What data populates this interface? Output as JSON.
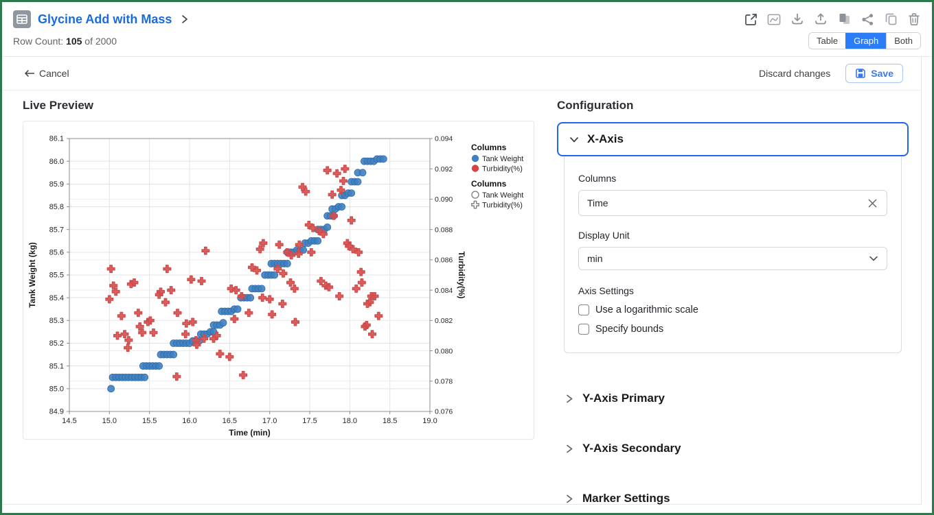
{
  "header": {
    "title": "Glycine Add with Mass",
    "row_count_label": "Row Count:",
    "row_count_value": "105",
    "row_count_total": "of 2000",
    "toolbar_icons": [
      "open-in-new-icon",
      "chart-icon",
      "download-icon",
      "upload-icon",
      "paste-icon",
      "share-icon",
      "copy-icon",
      "delete-icon"
    ],
    "view_toggle": {
      "options": [
        "Table",
        "Graph",
        "Both"
      ],
      "selected": "Graph",
      "selected_color": "#2a7cf7"
    },
    "cancel_label": "Cancel",
    "discard_label": "Discard changes",
    "save_label": "Save"
  },
  "preview": {
    "heading": "Live Preview"
  },
  "config": {
    "heading": "Configuration",
    "x_axis": {
      "title": "X-Axis",
      "columns_label": "Columns",
      "columns_value": "Time",
      "display_unit_label": "Display Unit",
      "display_unit_value": "min",
      "axis_settings_label": "Axis Settings",
      "checkboxes": [
        {
          "label": "Use a logarithmic scale",
          "checked": false
        },
        {
          "label": "Specify bounds",
          "checked": false
        }
      ]
    },
    "sections": [
      "Y-Axis Primary",
      "Y-Axis Secondary",
      "Marker Settings"
    ]
  },
  "chart_data": {
    "type": "scatter",
    "xlabel": "Time (min)",
    "ylabel_left": "Tank Weight (kg)",
    "ylabel_right": "Turbidity(%)",
    "xlim": [
      14.5,
      19.0
    ],
    "ylim_left": [
      84.9,
      86.1
    ],
    "ylim_right": [
      0.076,
      0.094
    ],
    "xticks": [
      "14.5",
      "15.0",
      "15.5",
      "16.0",
      "16.5",
      "17.0",
      "17.5",
      "18.0",
      "18.5",
      "19.0"
    ],
    "yticks_left": [
      "84.9",
      "85.0",
      "85.1",
      "85.2",
      "85.3",
      "85.4",
      "85.5",
      "85.6",
      "85.7",
      "85.8",
      "85.9",
      "86.0",
      "86.1"
    ],
    "yticks_right": [
      "0.076",
      "0.078",
      "0.080",
      "0.082",
      "0.084",
      "0.086",
      "0.088",
      "0.090",
      "0.092",
      "0.094"
    ],
    "grid": true,
    "legend": {
      "position": "right",
      "groups": [
        {
          "title": "Columns",
          "items": [
            {
              "label": "Tank Weight",
              "marker": "circle-filled",
              "color": "#3f81c1"
            },
            {
              "label": "Turbidity(%)",
              "marker": "circle-filled",
              "color": "#d64545"
            }
          ]
        },
        {
          "title": "Columns",
          "items": [
            {
              "label": "Tank Weight",
              "marker": "circle-open",
              "color": "#7a7a7a"
            },
            {
              "label": "Turbidity(%)",
              "marker": "cross-open",
              "color": "#7a7a7a"
            }
          ]
        }
      ]
    },
    "series": [
      {
        "name": "Tank Weight",
        "axis": "left",
        "marker": "circle",
        "color": "#3f81c1",
        "edge_color": "#2e6ba8",
        "points": [
          [
            15.02,
            85.0
          ],
          [
            15.04,
            85.05
          ],
          [
            15.08,
            85.05
          ],
          [
            15.12,
            85.05
          ],
          [
            15.16,
            85.05
          ],
          [
            15.2,
            85.05
          ],
          [
            15.24,
            85.05
          ],
          [
            15.28,
            85.05
          ],
          [
            15.32,
            85.05
          ],
          [
            15.36,
            85.05
          ],
          [
            15.4,
            85.05
          ],
          [
            15.44,
            85.05
          ],
          [
            15.42,
            85.1
          ],
          [
            15.46,
            85.1
          ],
          [
            15.5,
            85.1
          ],
          [
            15.54,
            85.1
          ],
          [
            15.58,
            85.1
          ],
          [
            15.62,
            85.1
          ],
          [
            15.64,
            85.15
          ],
          [
            15.68,
            85.15
          ],
          [
            15.72,
            85.15
          ],
          [
            15.76,
            85.15
          ],
          [
            15.8,
            85.15
          ],
          [
            15.8,
            85.2
          ],
          [
            15.84,
            85.2
          ],
          [
            15.88,
            85.2
          ],
          [
            15.92,
            85.2
          ],
          [
            15.96,
            85.2
          ],
          [
            16.0,
            85.2
          ],
          [
            16.04,
            85.21
          ],
          [
            16.08,
            85.21
          ],
          [
            16.12,
            85.21
          ],
          [
            16.14,
            85.24
          ],
          [
            16.18,
            85.24
          ],
          [
            16.22,
            85.24
          ],
          [
            16.26,
            85.25
          ],
          [
            16.3,
            85.25
          ],
          [
            16.3,
            85.28
          ],
          [
            16.34,
            85.28
          ],
          [
            16.38,
            85.28
          ],
          [
            16.42,
            85.29
          ],
          [
            16.4,
            85.34
          ],
          [
            16.44,
            85.34
          ],
          [
            16.48,
            85.34
          ],
          [
            16.52,
            85.34
          ],
          [
            16.56,
            85.35
          ],
          [
            16.6,
            85.35
          ],
          [
            16.64,
            85.4
          ],
          [
            16.68,
            85.4
          ],
          [
            16.72,
            85.4
          ],
          [
            16.76,
            85.4
          ],
          [
            16.78,
            85.44
          ],
          [
            16.82,
            85.44
          ],
          [
            16.86,
            85.44
          ],
          [
            16.9,
            85.44
          ],
          [
            16.94,
            85.5
          ],
          [
            16.98,
            85.5
          ],
          [
            17.02,
            85.5
          ],
          [
            17.06,
            85.5
          ],
          [
            17.02,
            85.55
          ],
          [
            17.06,
            85.55
          ],
          [
            17.1,
            85.55
          ],
          [
            17.14,
            85.55
          ],
          [
            17.18,
            85.55
          ],
          [
            17.22,
            85.55
          ],
          [
            17.22,
            85.6
          ],
          [
            17.26,
            85.6
          ],
          [
            17.3,
            85.6
          ],
          [
            17.34,
            85.61
          ],
          [
            17.38,
            85.61
          ],
          [
            17.42,
            85.61
          ],
          [
            17.44,
            85.64
          ],
          [
            17.48,
            85.64
          ],
          [
            17.52,
            85.65
          ],
          [
            17.56,
            85.65
          ],
          [
            17.6,
            85.65
          ],
          [
            17.6,
            85.7
          ],
          [
            17.64,
            85.7
          ],
          [
            17.68,
            85.7
          ],
          [
            17.72,
            85.71
          ],
          [
            17.72,
            85.76
          ],
          [
            17.76,
            85.76
          ],
          [
            17.8,
            85.76
          ],
          [
            17.78,
            85.79
          ],
          [
            17.82,
            85.79
          ],
          [
            17.86,
            85.8
          ],
          [
            17.9,
            85.8
          ],
          [
            17.9,
            85.85
          ],
          [
            17.94,
            85.85
          ],
          [
            17.98,
            85.86
          ],
          [
            18.02,
            85.86
          ],
          [
            18.02,
            85.91
          ],
          [
            18.06,
            85.91
          ],
          [
            18.1,
            85.91
          ],
          [
            18.1,
            85.95
          ],
          [
            18.16,
            85.95
          ],
          [
            18.18,
            86.0
          ],
          [
            18.22,
            86.0
          ],
          [
            18.26,
            86.0
          ],
          [
            18.3,
            86.0
          ],
          [
            18.34,
            86.01
          ],
          [
            18.38,
            86.01
          ],
          [
            18.42,
            86.01
          ]
        ]
      },
      {
        "name": "Turbidity(%)",
        "axis": "right",
        "marker": "cross",
        "color": "#d65050",
        "edge_color": "#cf4a4a",
        "points": [
          [
            15.0,
            0.0834
          ],
          [
            15.02,
            0.0854
          ],
          [
            15.05,
            0.0843
          ],
          [
            15.08,
            0.0839
          ],
          [
            15.1,
            0.081
          ],
          [
            15.15,
            0.0823
          ],
          [
            15.19,
            0.0811
          ],
          [
            15.23,
            0.0802
          ],
          [
            15.24,
            0.0807
          ],
          [
            15.27,
            0.0844
          ],
          [
            15.31,
            0.0845
          ],
          [
            15.36,
            0.0825
          ],
          [
            15.38,
            0.0816
          ],
          [
            15.41,
            0.0812
          ],
          [
            15.48,
            0.0819
          ],
          [
            15.51,
            0.082
          ],
          [
            15.55,
            0.0812
          ],
          [
            15.62,
            0.0837
          ],
          [
            15.64,
            0.0839
          ],
          [
            15.7,
            0.0832
          ],
          [
            15.72,
            0.0854
          ],
          [
            15.77,
            0.084
          ],
          [
            15.84,
            0.0783
          ],
          [
            15.85,
            0.0825
          ],
          [
            15.95,
            0.0811
          ],
          [
            15.96,
            0.0818
          ],
          [
            16.02,
            0.0847
          ],
          [
            16.04,
            0.0819
          ],
          [
            16.08,
            0.0807
          ],
          [
            16.09,
            0.0804
          ],
          [
            16.15,
            0.0846
          ],
          [
            16.18,
            0.0808
          ],
          [
            16.2,
            0.0866
          ],
          [
            16.3,
            0.0808
          ],
          [
            16.34,
            0.081
          ],
          [
            16.38,
            0.0798
          ],
          [
            16.5,
            0.0796
          ],
          [
            16.52,
            0.0841
          ],
          [
            16.56,
            0.0821
          ],
          [
            16.58,
            0.084
          ],
          [
            16.65,
            0.0836
          ],
          [
            16.67,
            0.0784
          ],
          [
            16.74,
            0.0825
          ],
          [
            16.78,
            0.0855
          ],
          [
            16.84,
            0.0853
          ],
          [
            16.88,
            0.0867
          ],
          [
            16.91,
            0.0835
          ],
          [
            16.92,
            0.0871
          ],
          [
            17.0,
            0.0834
          ],
          [
            17.03,
            0.0824
          ],
          [
            17.1,
            0.0854
          ],
          [
            17.12,
            0.087
          ],
          [
            17.16,
            0.0831
          ],
          [
            17.17,
            0.0851
          ],
          [
            17.22,
            0.0865
          ],
          [
            17.26,
            0.0845
          ],
          [
            17.27,
            0.0863
          ],
          [
            17.31,
            0.0841
          ],
          [
            17.32,
            0.0819
          ],
          [
            17.36,
            0.0864
          ],
          [
            17.37,
            0.087
          ],
          [
            17.41,
            0.0908
          ],
          [
            17.45,
            0.0905
          ],
          [
            17.49,
            0.0883
          ],
          [
            17.52,
            0.0865
          ],
          [
            17.54,
            0.0881
          ],
          [
            17.62,
            0.0879
          ],
          [
            17.64,
            0.0846
          ],
          [
            17.67,
            0.0877
          ],
          [
            17.7,
            0.0843
          ],
          [
            17.72,
            0.0919
          ],
          [
            17.74,
            0.0842
          ],
          [
            17.78,
            0.0903
          ],
          [
            17.8,
            0.0889
          ],
          [
            17.84,
            0.0917
          ],
          [
            17.87,
            0.0836
          ],
          [
            17.89,
            0.0906
          ],
          [
            17.92,
            0.0912
          ],
          [
            17.94,
            0.092
          ],
          [
            17.97,
            0.0871
          ],
          [
            17.99,
            0.0869
          ],
          [
            18.02,
            0.0886
          ],
          [
            18.04,
            0.0867
          ],
          [
            18.08,
            0.0841
          ],
          [
            18.11,
            0.0865
          ],
          [
            18.14,
            0.0852
          ],
          [
            18.15,
            0.0845
          ],
          [
            18.19,
            0.0816
          ],
          [
            18.21,
            0.0817
          ],
          [
            18.22,
            0.0831
          ],
          [
            18.25,
            0.0832
          ],
          [
            18.27,
            0.0836
          ],
          [
            18.28,
            0.0811
          ],
          [
            18.31,
            0.0836
          ],
          [
            18.36,
            0.0823
          ]
        ]
      }
    ]
  }
}
